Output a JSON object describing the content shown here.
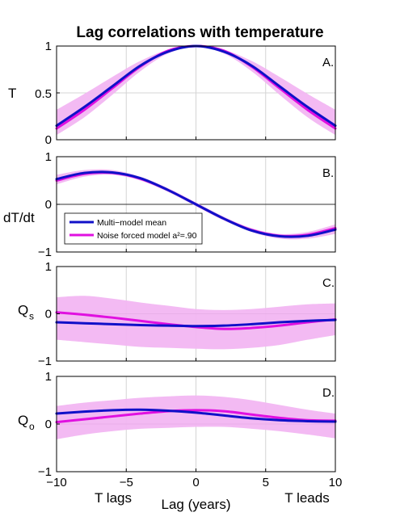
{
  "figure": {
    "title": "Lag correlations with temperature"
  },
  "chart_data": [
    {
      "type": "line",
      "panel_label": "A.",
      "ylabel": "T",
      "ylim": [
        0,
        1
      ],
      "yticks": [
        "0",
        "0.5",
        "1"
      ],
      "xlim": [
        -10,
        10
      ],
      "x": [
        -10,
        -8,
        -6,
        -4,
        -2,
        0,
        2,
        4,
        6,
        8,
        10
      ],
      "series": [
        {
          "values": [
            0.15,
            0.35,
            0.57,
            0.79,
            0.94,
            1.0,
            0.94,
            0.79,
            0.57,
            0.35,
            0.15
          ]
        },
        {
          "values": [
            0.12,
            0.32,
            0.55,
            0.78,
            0.95,
            1.0,
            0.95,
            0.78,
            0.55,
            0.32,
            0.12
          ]
        }
      ],
      "band": {
        "lower": [
          0.05,
          0.24,
          0.48,
          0.73,
          0.92,
          0.99,
          0.92,
          0.73,
          0.48,
          0.24,
          0.05
        ],
        "upper": [
          0.32,
          0.49,
          0.67,
          0.84,
          0.96,
          1.0,
          0.96,
          0.84,
          0.67,
          0.49,
          0.32
        ]
      }
    },
    {
      "type": "line",
      "panel_label": "B.",
      "ylabel": "dT/dt",
      "ylim": [
        -1,
        1
      ],
      "yticks": [
        "−1",
        "0",
        "1"
      ],
      "xlim": [
        -10,
        10
      ],
      "x": [
        -10,
        -8,
        -6,
        -4,
        -2,
        0,
        2,
        4,
        6,
        8,
        10
      ],
      "series": [
        {
          "name": "Multi−model mean",
          "values": [
            0.53,
            0.66,
            0.67,
            0.55,
            0.3,
            0.0,
            -0.3,
            -0.55,
            -0.67,
            -0.66,
            -0.53
          ]
        },
        {
          "name": "Noise forced model a²=.90",
          "values": [
            0.5,
            0.64,
            0.66,
            0.54,
            0.3,
            0.0,
            -0.3,
            -0.54,
            -0.66,
            -0.64,
            -0.5
          ]
        }
      ],
      "band": {
        "lower": [
          0.42,
          0.58,
          0.62,
          0.5,
          0.26,
          -0.04,
          -0.34,
          -0.58,
          -0.72,
          -0.72,
          -0.62
        ],
        "upper": [
          0.62,
          0.72,
          0.72,
          0.58,
          0.34,
          0.04,
          -0.26,
          -0.5,
          -0.62,
          -0.58,
          -0.42
        ]
      },
      "legend": {
        "placement": "lower-left"
      }
    },
    {
      "type": "line",
      "panel_label": "C.",
      "ylabel": "Q",
      "ylabel_sub": "s",
      "ylim": [
        -1,
        1
      ],
      "yticks": [
        "−1",
        "0",
        "1"
      ],
      "xlim": [
        -10,
        10
      ],
      "x": [
        -10,
        -8,
        -6,
        -4,
        -2,
        0,
        2,
        4,
        6,
        8,
        10
      ],
      "series": [
        {
          "values": [
            -0.18,
            -0.2,
            -0.22,
            -0.24,
            -0.25,
            -0.26,
            -0.25,
            -0.22,
            -0.18,
            -0.15,
            -0.13
          ]
        },
        {
          "values": [
            0.03,
            -0.02,
            -0.08,
            -0.15,
            -0.22,
            -0.28,
            -0.32,
            -0.3,
            -0.25,
            -0.18,
            -0.12
          ]
        }
      ],
      "band": {
        "lower": [
          -0.55,
          -0.6,
          -0.65,
          -0.7,
          -0.72,
          -0.74,
          -0.75,
          -0.72,
          -0.66,
          -0.55,
          -0.45
        ],
        "upper": [
          0.35,
          0.38,
          0.32,
          0.24,
          0.17,
          0.1,
          0.08,
          0.1,
          0.15,
          0.2,
          0.22
        ]
      }
    },
    {
      "type": "line",
      "panel_label": "D.",
      "ylabel": "Q",
      "ylabel_sub": "o",
      "ylim": [
        -1,
        1
      ],
      "yticks": [
        "−1",
        "0",
        "1"
      ],
      "xlim": [
        -10,
        10
      ],
      "xticks": [
        "−10",
        "−5",
        "0",
        "5",
        "10"
      ],
      "xlabel": "Lag (years)",
      "x_annotations": [
        "T lags",
        "T leads"
      ],
      "x": [
        -10,
        -8,
        -6,
        -4,
        -2,
        0,
        2,
        4,
        6,
        8,
        10
      ],
      "series": [
        {
          "values": [
            0.22,
            0.26,
            0.29,
            0.3,
            0.28,
            0.24,
            0.18,
            0.12,
            0.08,
            0.06,
            0.05
          ]
        },
        {
          "values": [
            0.04,
            0.1,
            0.16,
            0.22,
            0.27,
            0.29,
            0.27,
            0.2,
            0.13,
            0.08,
            0.07
          ]
        }
      ],
      "band": {
        "lower": [
          -0.32,
          -0.22,
          -0.15,
          -0.1,
          -0.08,
          -0.06,
          -0.06,
          -0.1,
          -0.15,
          -0.22,
          -0.3
        ],
        "upper": [
          0.38,
          0.45,
          0.5,
          0.55,
          0.58,
          0.6,
          0.57,
          0.5,
          0.4,
          0.3,
          0.22
        ]
      }
    }
  ],
  "colors": {
    "mean": "#1010c8",
    "noise": "#e010e0",
    "band": "#f2b6f2",
    "zero_line": "#333333",
    "grid": "#d4d4d4"
  }
}
